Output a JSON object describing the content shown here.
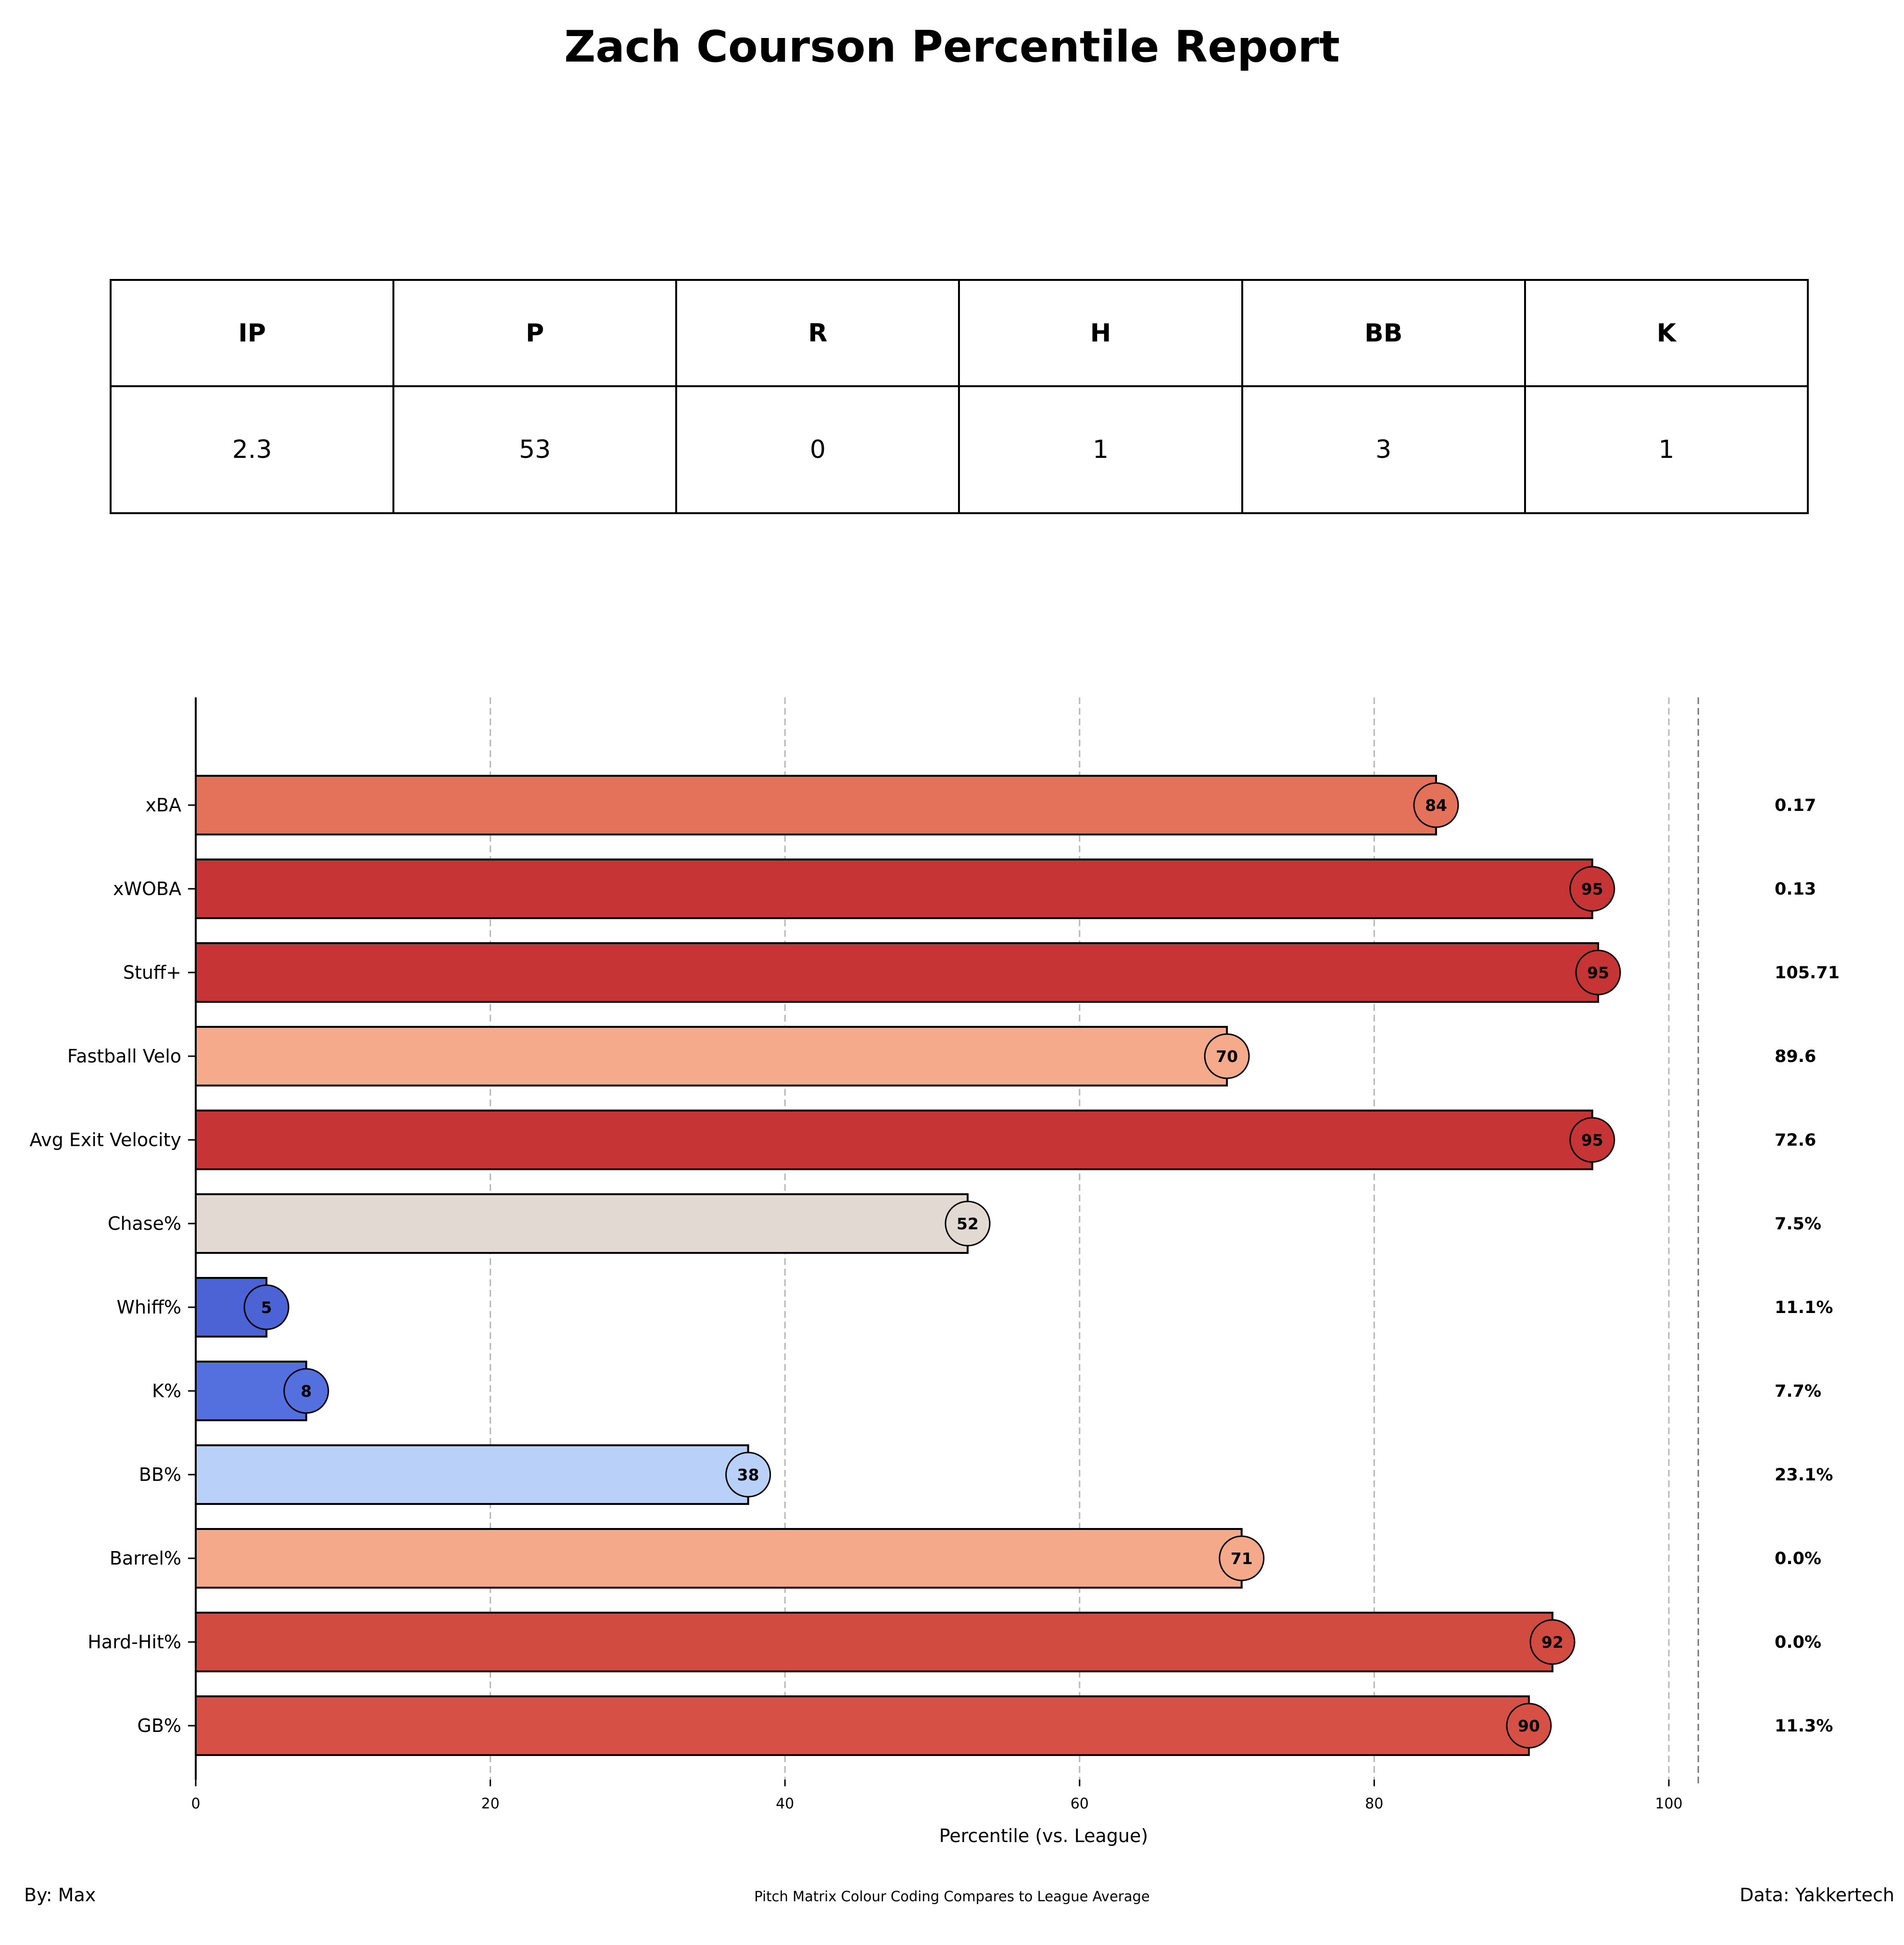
{
  "title": "Zach Courson Percentile Report",
  "stat_table": {
    "headers": [
      "IP",
      "P",
      "R",
      "H",
      "BB",
      "K"
    ],
    "values": [
      "2.3",
      "53",
      "0",
      "1",
      "3",
      "1"
    ]
  },
  "chart_data": {
    "type": "bar",
    "orientation": "horizontal",
    "categories": [
      "xBA",
      "xWOBA",
      "Stuff+",
      "Fastball Velo",
      "Avg Exit Velocity",
      "Chase%",
      "Whiff%",
      "K%",
      "BB%",
      "Barrel%",
      "Hard-Hit%",
      "GB%"
    ],
    "values": [
      84,
      95,
      95,
      70,
      95,
      52,
      5,
      8,
      38,
      71,
      92,
      90
    ],
    "bar_extents": [
      84.2,
      94.8,
      95.2,
      70.0,
      94.8,
      52.4,
      4.8,
      7.5,
      37.5,
      71.0,
      92.1,
      90.5
    ],
    "raw_values": [
      "0.17",
      "0.13",
      "105.71",
      "89.6",
      "72.6",
      "7.5%",
      "11.1%",
      "7.7%",
      "23.1%",
      "0.0%",
      "0.0%",
      "11.3%"
    ],
    "colors": [
      "#e4725b",
      "#c73436",
      "#c73436",
      "#f6aa8c",
      "#c73436",
      "#e3d9d3",
      "#4c63d6",
      "#5470de",
      "#b9d0f9",
      "#f5a98b",
      "#d24b40",
      "#d75045"
    ],
    "xlabel": "Percentile (vs. League)",
    "xticks": [
      0,
      20,
      40,
      60,
      80,
      100
    ],
    "xlim": [
      0,
      102
    ],
    "grid": true
  },
  "footer": {
    "left": "By: Max",
    "center": "Pitch Matrix Colour Coding Compares to League Average",
    "right": "Data: Yakkertech"
  }
}
